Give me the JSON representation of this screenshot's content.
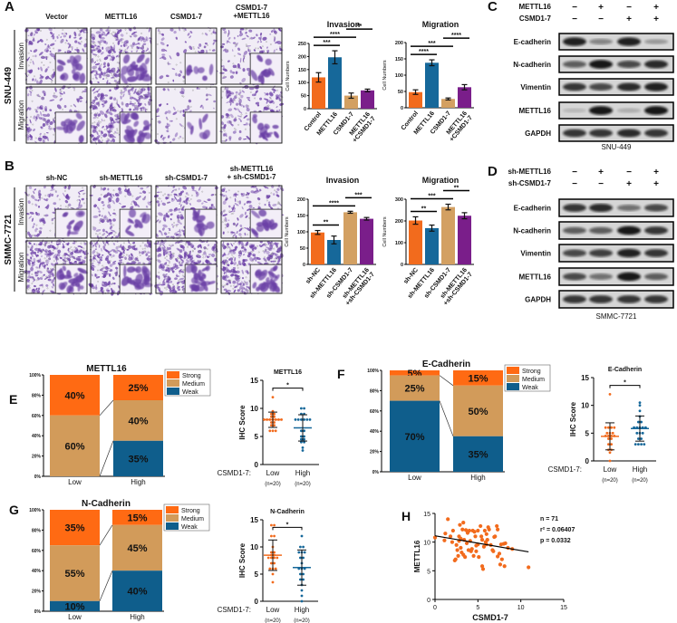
{
  "colors": {
    "orange": "#f26b1d",
    "blue": "#16689a",
    "tan": "#d3a062",
    "purple": "#7a1e8a",
    "strong": "#ff6a13",
    "medium": "#d29b5a",
    "weak": "#0f5e8c",
    "stain": "#6b3fa6"
  },
  "panels": {
    "A": {
      "letter": "A",
      "cell_line": "SNU-449",
      "columns": [
        "Vector",
        "METTL16",
        "CSMD1-7",
        "CSMD1-7\n+METTL16"
      ],
      "rows": [
        "Invasion",
        "Migration"
      ]
    },
    "B": {
      "letter": "B",
      "cell_line": "SMMC-7721",
      "columns": [
        "sh-NC",
        "sh-METTL16",
        "sh-CSMD1-7",
        "sh-METTL16\n+ sh-CSMD1-7"
      ],
      "rows": [
        "Invasion",
        "Migration"
      ]
    },
    "C": {
      "letter": "C",
      "cell_line": "SNU-449",
      "conditions": [
        {
          "label": "METTL16",
          "signs": [
            "−",
            "+",
            "−",
            "+"
          ]
        },
        {
          "label": "CSMD1-7",
          "signs": [
            "−",
            "−",
            "+",
            "+"
          ]
        }
      ],
      "blots": [
        {
          "label": "E-cadherin",
          "bands": [
            0.9,
            0.4,
            0.9,
            0.3
          ]
        },
        {
          "label": "N-cadherin",
          "bands": [
            0.6,
            0.95,
            0.7,
            0.85
          ]
        },
        {
          "label": "Vimentin",
          "bands": [
            0.8,
            0.7,
            0.85,
            0.9
          ]
        },
        {
          "label": "METTL16",
          "bands": [
            0.15,
            0.95,
            0.2,
            0.95
          ]
        },
        {
          "label": "GAPDH",
          "bands": [
            0.8,
            0.8,
            0.85,
            0.8
          ]
        }
      ]
    },
    "D": {
      "letter": "D",
      "cell_line": "SMMC-7721",
      "conditions": [
        {
          "label": "sh-METTL16",
          "signs": [
            "−",
            "+",
            "−",
            "+"
          ]
        },
        {
          "label": "sh-CSMD1-7",
          "signs": [
            "−",
            "−",
            "+",
            "+"
          ]
        }
      ],
      "blots": [
        {
          "label": "E-cadherin",
          "bands": [
            0.8,
            0.85,
            0.5,
            0.7
          ]
        },
        {
          "label": "N-cadherin",
          "bands": [
            0.6,
            0.6,
            0.95,
            0.8
          ]
        },
        {
          "label": "Vimentin",
          "bands": [
            0.7,
            0.75,
            0.9,
            0.8
          ]
        },
        {
          "label": "METTL16",
          "bands": [
            0.7,
            0.5,
            0.95,
            0.6
          ]
        },
        {
          "label": "GAPDH",
          "bands": [
            0.8,
            0.8,
            0.8,
            0.8
          ]
        }
      ]
    },
    "E": {
      "letter": "E"
    },
    "F": {
      "letter": "F"
    },
    "G": {
      "letter": "G"
    },
    "H": {
      "letter": "H"
    }
  },
  "chart_data": [
    {
      "id": "A-invasion",
      "type": "bar",
      "title": "Invasion",
      "ylabel": "Cell Numbers",
      "ylim": [
        0,
        250
      ],
      "yticks": [
        0,
        50,
        100,
        150,
        200,
        250
      ],
      "categories": [
        "Control",
        "METTL16",
        "CSMD1-7",
        "METTL16\n+CSMD1-7"
      ],
      "values": [
        120,
        197,
        50,
        70
      ],
      "errors": [
        18,
        25,
        10,
        5
      ],
      "significance": [
        {
          "from": 0,
          "to": 1,
          "label": "***"
        },
        {
          "from": 0,
          "to": 2,
          "label": "****"
        },
        {
          "from": 2,
          "to": 3,
          "label": "**"
        }
      ]
    },
    {
      "id": "A-migration",
      "type": "bar",
      "title": "Migration",
      "ylabel": "Cell Numbers",
      "ylim": [
        0,
        200
      ],
      "yticks": [
        0,
        50,
        100,
        150,
        200
      ],
      "categories": [
        "Control",
        "METTL16",
        "CSMD1-7",
        "METTL16\n+CSMD1-7"
      ],
      "values": [
        48,
        138,
        27,
        63
      ],
      "errors": [
        7,
        9,
        3,
        8
      ],
      "significance": [
        {
          "from": 0,
          "to": 1,
          "label": "****"
        },
        {
          "from": 0,
          "to": 2,
          "label": "***"
        },
        {
          "from": 2,
          "to": 3,
          "label": "****"
        }
      ]
    },
    {
      "id": "B-invasion",
      "type": "bar",
      "title": "Invasion",
      "ylabel": "Cell Numbers",
      "ylim": [
        0,
        200
      ],
      "yticks": [
        0,
        50,
        100,
        150,
        200
      ],
      "categories": [
        "sh-NC",
        "sh-METTL16",
        "sh-CSMD1-7",
        "sh-METTL16\n+sh-CSMD1-7"
      ],
      "values": [
        98,
        75,
        160,
        140
      ],
      "errors": [
        6,
        12,
        3,
        4
      ],
      "significance": [
        {
          "from": 0,
          "to": 1,
          "label": "**"
        },
        {
          "from": 0,
          "to": 2,
          "label": "****"
        },
        {
          "from": 2,
          "to": 3,
          "label": "***"
        }
      ]
    },
    {
      "id": "B-migration",
      "type": "bar",
      "title": "Migration",
      "ylabel": "Cell Numbers",
      "ylim": [
        0,
        300
      ],
      "yticks": [
        0,
        100,
        200,
        300
      ],
      "categories": [
        "sh-NC",
        "sh-METTL16",
        "sh-CSMD1-7",
        "sh-METTL16\n+sh-CSMD1-7"
      ],
      "values": [
        202,
        167,
        264,
        224
      ],
      "errors": [
        17,
        14,
        13,
        14
      ],
      "significance": [
        {
          "from": 0,
          "to": 1,
          "label": "**"
        },
        {
          "from": 0,
          "to": 2,
          "label": "***"
        },
        {
          "from": 2,
          "to": 3,
          "label": "**"
        }
      ]
    },
    {
      "id": "E-stacked",
      "type": "bar",
      "stacked": true,
      "title": "METTL16",
      "categories": [
        "Low",
        "High"
      ],
      "yticks": [
        "0%",
        "20%",
        "40%",
        "60%",
        "80%",
        "100%"
      ],
      "legend": [
        "Strong",
        "Medium",
        "Weak"
      ],
      "legend_position": "top-right",
      "series": [
        {
          "name": "Strong",
          "values": [
            40,
            25
          ]
        },
        {
          "name": "Medium",
          "values": [
            60,
            40
          ]
        },
        {
          "name": "Weak",
          "values": [
            0,
            35
          ]
        }
      ]
    },
    {
      "id": "E-ihc",
      "type": "scatter",
      "title": "METTL16",
      "ylabel": "IHC Score",
      "ylim": [
        0,
        15
      ],
      "yticks": [
        0,
        5,
        10,
        15
      ],
      "group_prefix": "CSMD1-7:",
      "groups": [
        {
          "name": "Low",
          "n": "(n=20)",
          "values": [
            12,
            9.5,
            9,
            9,
            8.5,
            8.5,
            8,
            8,
            8,
            8,
            8,
            8,
            8,
            7.5,
            7.5,
            7,
            7,
            6,
            6,
            6
          ]
        },
        {
          "name": "High",
          "n": "(n=20)",
          "values": [
            10,
            10,
            9,
            9,
            8,
            8,
            8,
            8,
            8,
            8,
            6,
            6,
            5,
            5,
            4.5,
            4.5,
            4,
            4,
            3,
            2.5
          ]
        }
      ],
      "significance": "*"
    },
    {
      "id": "F-stacked",
      "type": "bar",
      "stacked": true,
      "title": "E-Cadherin",
      "categories": [
        "Low",
        "High"
      ],
      "yticks": [
        "0%",
        "20%",
        "40%",
        "60%",
        "80%",
        "100%"
      ],
      "legend": [
        "Strong",
        "Medium",
        "Weak"
      ],
      "legend_position": "top-right",
      "series": [
        {
          "name": "Strong",
          "values": [
            5,
            15
          ]
        },
        {
          "name": "Medium",
          "values": [
            25,
            50
          ]
        },
        {
          "name": "Weak",
          "values": [
            70,
            35
          ]
        }
      ]
    },
    {
      "id": "F-ihc",
      "type": "scatter",
      "title": "E-Cadherin",
      "ylabel": "IHC Score",
      "ylim": [
        0,
        15
      ],
      "yticks": [
        0,
        5,
        10,
        15
      ],
      "group_prefix": "CSMD1-7:",
      "groups": [
        {
          "name": "Low",
          "n": "(n=20)",
          "values": [
            12,
            6,
            6,
            6,
            6,
            5,
            5,
            5,
            4.5,
            4.5,
            4.5,
            4.5,
            4,
            4,
            3,
            3,
            2,
            2,
            1.5,
            0
          ]
        },
        {
          "name": "High",
          "n": "(n=20)",
          "values": [
            10.5,
            10,
            9,
            8,
            7,
            7,
            6,
            6,
            6,
            6,
            6,
            5,
            5,
            5,
            4,
            4,
            3,
            3,
            3,
            3
          ]
        }
      ],
      "significance": "*"
    },
    {
      "id": "G-stacked",
      "type": "bar",
      "stacked": true,
      "title": "N-Cadherin",
      "categories": [
        "Low",
        "High"
      ],
      "yticks": [
        "0%",
        "20%",
        "40%",
        "60%",
        "80%",
        "100%"
      ],
      "legend": [
        "Strong",
        "Medium",
        "Weak"
      ],
      "legend_position": "top-right",
      "series": [
        {
          "name": "Strong",
          "values": [
            35,
            15
          ]
        },
        {
          "name": "Medium",
          "values": [
            55,
            45
          ]
        },
        {
          "name": "Weak",
          "values": [
            10,
            40
          ]
        }
      ]
    },
    {
      "id": "G-ihc",
      "type": "scatter",
      "title": "N-Cadherin",
      "ylabel": "IHC Score",
      "ylim": [
        0,
        15
      ],
      "yticks": [
        0,
        5,
        10,
        15
      ],
      "group_prefix": "CSMD1-7:",
      "groups": [
        {
          "name": "Low",
          "n": "(n=20)",
          "values": [
            14,
            14,
            12,
            12,
            10,
            9,
            9,
            8.5,
            8.5,
            8,
            8,
            8,
            8,
            7,
            7,
            6,
            6,
            6,
            5,
            3.5
          ]
        },
        {
          "name": "High",
          "n": "(n=20)",
          "values": [
            12,
            10,
            10,
            9,
            9,
            9,
            8,
            8,
            7,
            6,
            6,
            6,
            5,
            5,
            4,
            4,
            3,
            2,
            1,
            0
          ]
        }
      ],
      "significance": "*"
    },
    {
      "id": "H-correlation",
      "type": "scatter",
      "xlabel": "CSMD1-7",
      "ylabel": "METTL16",
      "xlim": [
        0,
        15
      ],
      "ylim": [
        0,
        15
      ],
      "xticks": [
        0,
        5,
        10,
        15
      ],
      "yticks": [
        0,
        5,
        10,
        15
      ],
      "stats": [
        "n = 71",
        "r² = 0.06407",
        "p = 0.0332"
      ],
      "fit_line": [
        [
          0,
          11.1
        ],
        [
          10.9,
          8.3
        ]
      ],
      "points": [
        [
          0,
          10.8
        ],
        [
          1.1,
          10.3
        ],
        [
          1.2,
          11.5
        ],
        [
          1.5,
          14
        ],
        [
          1.8,
          11
        ],
        [
          2,
          10
        ],
        [
          2.1,
          12
        ],
        [
          2.3,
          6.8
        ],
        [
          2.4,
          7
        ],
        [
          2.5,
          9.5
        ],
        [
          2.6,
          8.6
        ],
        [
          2.7,
          7.6
        ],
        [
          2.8,
          10.2
        ],
        [
          2.8,
          11
        ],
        [
          2.9,
          13
        ],
        [
          3,
          10.6
        ],
        [
          3,
          9
        ],
        [
          3.1,
          8.2
        ],
        [
          3.2,
          12.2
        ],
        [
          3.3,
          13.4
        ],
        [
          3.3,
          7.8
        ],
        [
          3.4,
          10.4
        ],
        [
          3.5,
          7.4
        ],
        [
          3.6,
          12.1
        ],
        [
          3.7,
          9.8
        ],
        [
          3.8,
          11.6
        ],
        [
          3.9,
          8.6
        ],
        [
          4,
          12
        ],
        [
          4.1,
          10.2
        ],
        [
          4.2,
          8.4
        ],
        [
          4.3,
          8.8
        ],
        [
          4.4,
          12
        ],
        [
          4.5,
          7.6
        ],
        [
          4.6,
          11.8
        ],
        [
          4.7,
          11
        ],
        [
          4.8,
          9.4
        ],
        [
          4.8,
          8.4
        ],
        [
          5,
          12
        ],
        [
          5,
          9.6
        ],
        [
          5.1,
          7.4
        ],
        [
          5.3,
          12.8
        ],
        [
          5.4,
          11
        ],
        [
          5.5,
          10.4
        ],
        [
          5.5,
          5.8
        ],
        [
          5.6,
          5.3
        ],
        [
          5.7,
          9.2
        ],
        [
          5.8,
          12
        ],
        [
          5.9,
          10
        ],
        [
          6,
          11.4
        ],
        [
          6,
          9.6
        ],
        [
          6.1,
          10.4
        ],
        [
          6.2,
          12.6
        ],
        [
          6.3,
          12.2
        ],
        [
          6.5,
          9.5
        ],
        [
          6.7,
          8.6
        ],
        [
          6.8,
          8.4
        ],
        [
          7,
          11
        ],
        [
          7.2,
          12.8
        ],
        [
          7.3,
          12.2
        ],
        [
          7.3,
          7.5
        ],
        [
          7.5,
          8
        ],
        [
          7.6,
          6.1
        ],
        [
          7.7,
          9.6
        ],
        [
          7.8,
          7
        ],
        [
          8,
          9.7
        ],
        [
          8.1,
          5.8
        ],
        [
          8.2,
          9.8
        ],
        [
          8.5,
          9
        ],
        [
          9,
          8.8
        ],
        [
          10.9,
          5.6
        ],
        [
          6.9,
          10.9
        ]
      ]
    }
  ]
}
